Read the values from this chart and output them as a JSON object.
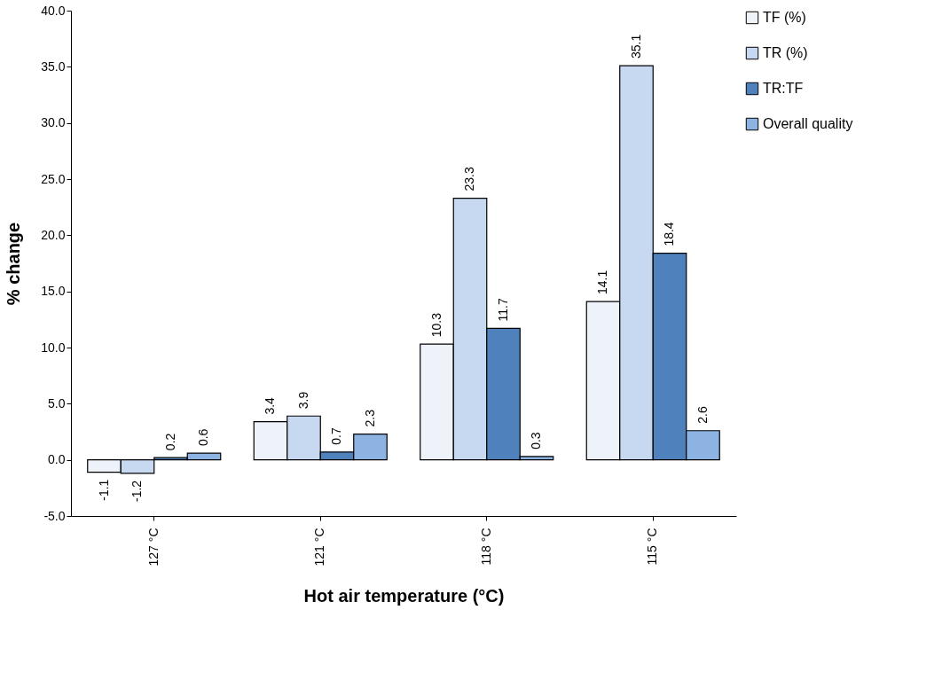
{
  "chart_data": {
    "type": "bar",
    "xlabel": "Hot air temperature (°C)",
    "ylabel": "% change",
    "categories": [
      "127 °C",
      "121 °C",
      "118 °C",
      "115 °C"
    ],
    "series": [
      {
        "name": "TF (%)",
        "color": "#eef3fa",
        "values": [
          -1.1,
          3.4,
          10.3,
          14.1
        ]
      },
      {
        "name": "TR (%)",
        "color": "#c6d9f1",
        "values": [
          -1.2,
          3.9,
          23.3,
          35.1
        ]
      },
      {
        "name": "TR:TF",
        "color": "#4f81bd",
        "values": [
          0.2,
          0.7,
          11.7,
          18.4
        ]
      },
      {
        "name": "Overall quality",
        "color": "#8db3e2",
        "values": [
          0.6,
          2.3,
          0.3,
          2.6
        ]
      }
    ],
    "ylim": [
      -5,
      40
    ],
    "yticks": [
      {
        "value": -5,
        "label": "-5.0"
      },
      {
        "value": 0,
        "label": "0.0"
      },
      {
        "value": 5,
        "label": "5.0"
      },
      {
        "value": 10,
        "label": "10.0"
      },
      {
        "value": 15,
        "label": "15.0"
      },
      {
        "value": 20,
        "label": "20.0"
      },
      {
        "value": 25,
        "label": "25.0"
      },
      {
        "value": 30,
        "label": "30.0"
      },
      {
        "value": 35,
        "label": "35.0"
      },
      {
        "value": 40,
        "label": "40.0"
      }
    ],
    "data_labels": true,
    "grid": false,
    "legend": "right"
  }
}
